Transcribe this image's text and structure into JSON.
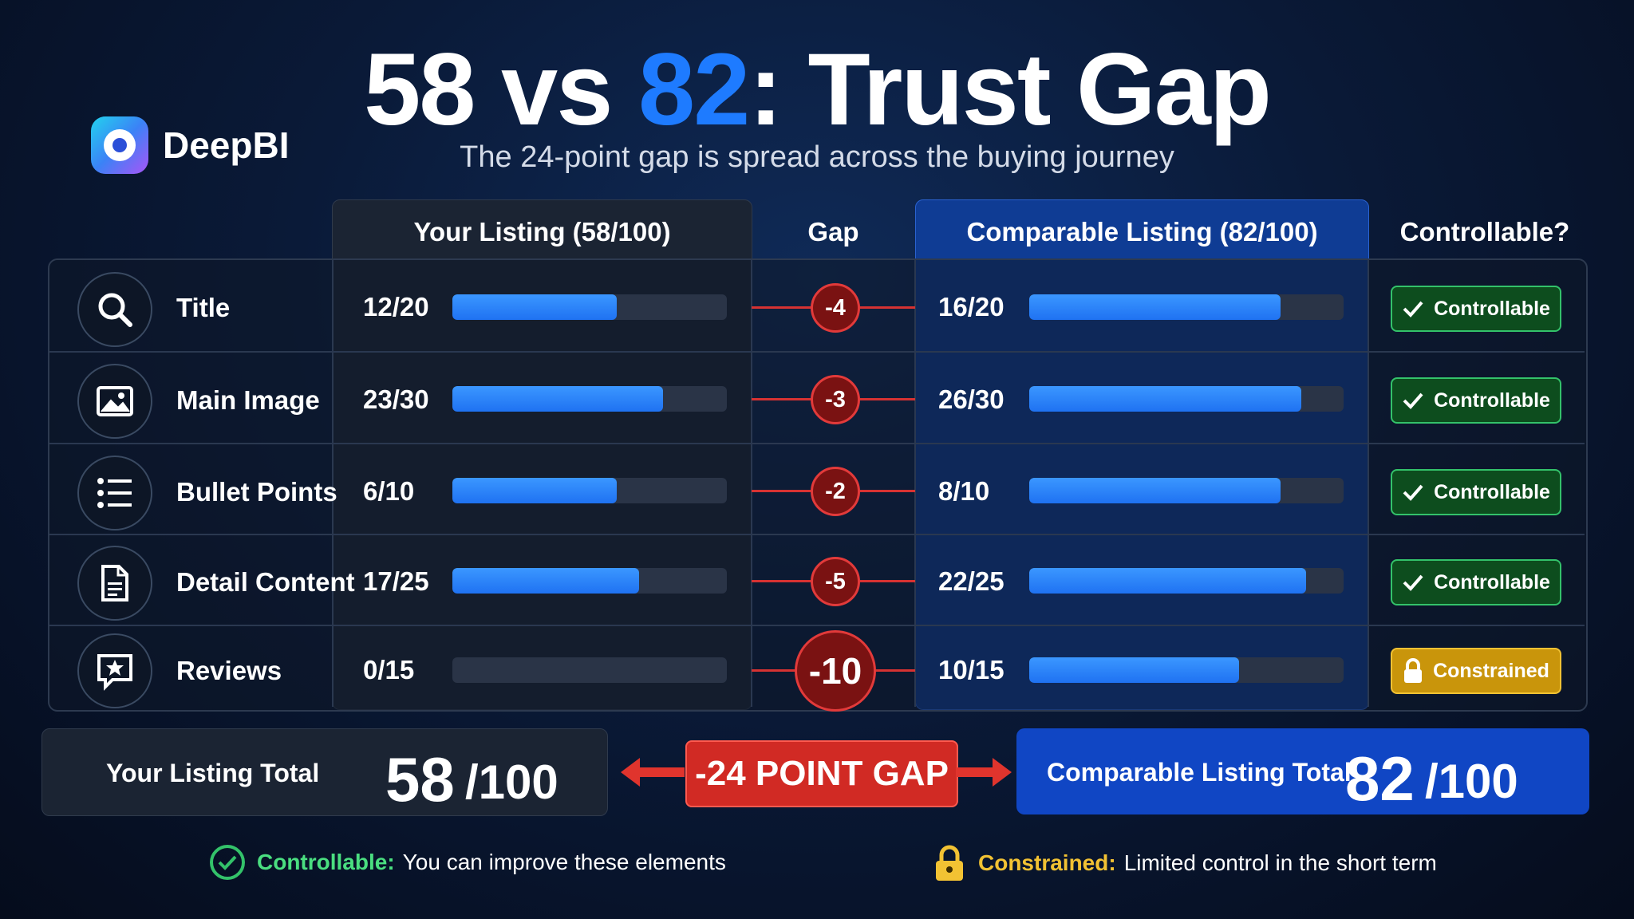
{
  "logo": {
    "text": "DeepBI"
  },
  "title": {
    "a": "58",
    "vs": " vs ",
    "b": "82",
    "rest": ": Trust Gap"
  },
  "subtitle": "The 24-point gap is spread across the buying journey",
  "headers": {
    "your_listing": "Your Listing (58/100)",
    "gap": "Gap",
    "comparable": "Comparable Listing (82/100)",
    "controllable": "Controllable?"
  },
  "chart_data": {
    "type": "table",
    "title": "58 vs 82: Trust Gap",
    "series": [
      {
        "name": "Your Listing",
        "values": [
          12,
          23,
          6,
          17,
          0
        ]
      },
      {
        "name": "Comparable Listing",
        "values": [
          16,
          26,
          8,
          22,
          10
        ]
      }
    ],
    "rows": [
      {
        "icon": "search-icon",
        "label": "Title",
        "your_score": "12/20",
        "your_value": 12,
        "max": 20,
        "gap": "-4",
        "comp_score": "16/20",
        "comp_value": 16,
        "status": "Controllable"
      },
      {
        "icon": "image-icon",
        "label": "Main Image",
        "your_score": "23/30",
        "your_value": 23,
        "max": 30,
        "gap": "-3",
        "comp_score": "26/30",
        "comp_value": 26,
        "status": "Controllable"
      },
      {
        "icon": "list-icon",
        "label": "Bullet Points",
        "your_score": "6/10",
        "your_value": 6,
        "max": 10,
        "gap": "-2",
        "comp_score": "8/10",
        "comp_value": 8,
        "status": "Controllable"
      },
      {
        "icon": "document-icon",
        "label": "Detail Content",
        "your_score": "17/25",
        "your_value": 17,
        "max": 25,
        "gap": "-5",
        "comp_score": "22/25",
        "comp_value": 22,
        "status": "Controllable"
      },
      {
        "icon": "review-star-icon",
        "label": "Reviews",
        "your_score": "0/15",
        "your_value": 0,
        "max": 15,
        "gap": "-10",
        "comp_score": "10/15",
        "comp_value": 10,
        "status": "Constrained"
      }
    ]
  },
  "totals": {
    "your_label": "Your Listing Total",
    "your_value": "58",
    "your_max": "/100",
    "gap_label": "-24 POINT GAP",
    "comp_label": "Comparable Listing Total",
    "comp_value": "82",
    "comp_max": "/100"
  },
  "legend": {
    "controllable_key": "Controllable:",
    "controllable_text": "You can improve these elements",
    "constrained_key": "Constrained:",
    "constrained_text": "Limited control in the short term"
  },
  "colors": {
    "accent_blue": "#1e7bff",
    "gap_red": "#d63232",
    "controllable_green": "#33c26a",
    "constrained_gold": "#f2c233"
  }
}
